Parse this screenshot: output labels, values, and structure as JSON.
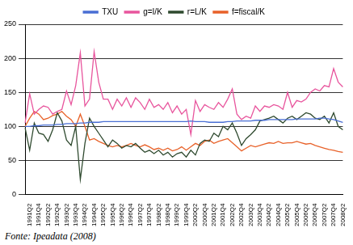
{
  "chart_data": {
    "type": "line",
    "annotations": [
      "Fonte: Ipeadata (2008)"
    ],
    "categories": [
      null,
      "1991Q2",
      null,
      "1991Q4",
      null,
      "1992Q2",
      null,
      "1992Q4",
      null,
      "1993Q2",
      null,
      "1993Q4",
      null,
      "1994Q2",
      null,
      "1994Q4",
      null,
      "1995Q2",
      null,
      "1995Q4",
      null,
      "1996Q2",
      null,
      "1996Q4",
      null,
      "1997Q2",
      null,
      "1997Q4",
      null,
      "1998Q2",
      null,
      "1998Q4",
      null,
      "1999Q2",
      null,
      "1999Q4",
      null,
      "2000Q2",
      null,
      "2000Q4",
      null,
      "2001Q2",
      null,
      "2001Q4",
      null,
      "2002Q2",
      null,
      "2002Q4",
      null,
      "2003Q2",
      null,
      "2003Q4",
      null,
      "2004Q2",
      null,
      "2004Q4",
      null,
      "2005Q2",
      null,
      "2005Q4",
      null,
      "2006Q2",
      null,
      "2006Q4",
      null,
      "2007Q2",
      null,
      "2007Q4",
      null,
      "2008Q2"
    ],
    "series": [
      {
        "name": "TXU",
        "color": "#4a6fd4",
        "values": [
          100,
          100,
          101,
          101,
          102,
          102,
          102,
          103,
          103,
          104,
          104,
          104,
          105,
          105,
          106,
          106,
          106,
          107,
          107,
          107,
          107,
          107,
          107,
          107,
          107,
          107,
          107,
          107,
          107,
          107,
          107,
          107,
          107,
          107,
          107,
          107,
          108,
          107,
          107,
          107,
          106,
          106,
          106,
          106,
          107,
          107,
          108,
          108,
          108,
          108,
          109,
          109,
          109,
          110,
          110,
          110,
          110,
          110,
          110,
          111,
          111,
          111,
          111,
          111,
          112,
          112,
          111,
          110,
          108,
          106
        ]
      },
      {
        "name": "g=I/K",
        "color": "#e8559d",
        "values": [
          105,
          148,
          118,
          125,
          130,
          128,
          118,
          122,
          125,
          152,
          132,
          160,
          208,
          130,
          140,
          210,
          165,
          140,
          140,
          125,
          140,
          130,
          142,
          128,
          142,
          135,
          125,
          140,
          128,
          132,
          125,
          135,
          120,
          130,
          118,
          125,
          88,
          138,
          122,
          132,
          128,
          125,
          135,
          128,
          140,
          155,
          118,
          110,
          115,
          112,
          130,
          122,
          130,
          128,
          132,
          130,
          125,
          150,
          128,
          138,
          136,
          140,
          150,
          155,
          152,
          160,
          158,
          185,
          165,
          158
        ]
      },
      {
        "name": "r=L/K",
        "color": "#2f4a2f",
        "values": [
          98,
          65,
          105,
          90,
          88,
          78,
          95,
          120,
          108,
          80,
          72,
          100,
          22,
          75,
          112,
          100,
          90,
          80,
          70,
          80,
          75,
          68,
          72,
          70,
          75,
          68,
          62,
          65,
          60,
          65,
          58,
          62,
          55,
          60,
          62,
          55,
          65,
          58,
          75,
          80,
          78,
          90,
          85,
          100,
          95,
          105,
          90,
          72,
          82,
          88,
          95,
          108,
          110,
          112,
          115,
          110,
          105,
          112,
          115,
          110,
          115,
          120,
          118,
          112,
          110,
          115,
          105,
          120,
          100,
          95
        ]
      },
      {
        "name": "f=fiscal/K",
        "color": "#e8622a",
        "values": [
          100,
          112,
          122,
          118,
          110,
          112,
          116,
          118,
          122,
          115,
          110,
          100,
          118,
          100,
          80,
          82,
          78,
          75,
          72,
          70,
          72,
          70,
          72,
          75,
          72,
          70,
          73,
          70,
          66,
          68,
          65,
          68,
          64,
          66,
          70,
          65,
          70,
          75,
          72,
          78,
          80,
          75,
          78,
          80,
          82,
          76,
          70,
          64,
          68,
          72,
          70,
          72,
          74,
          76,
          75,
          78,
          75,
          76,
          76,
          78,
          76,
          74,
          75,
          72,
          70,
          68,
          66,
          65,
          63,
          62
        ]
      }
    ],
    "ylim": [
      0,
      250
    ],
    "yticks": [
      0,
      50,
      100,
      150,
      200,
      250
    ],
    "grid": true,
    "legend": "top"
  }
}
